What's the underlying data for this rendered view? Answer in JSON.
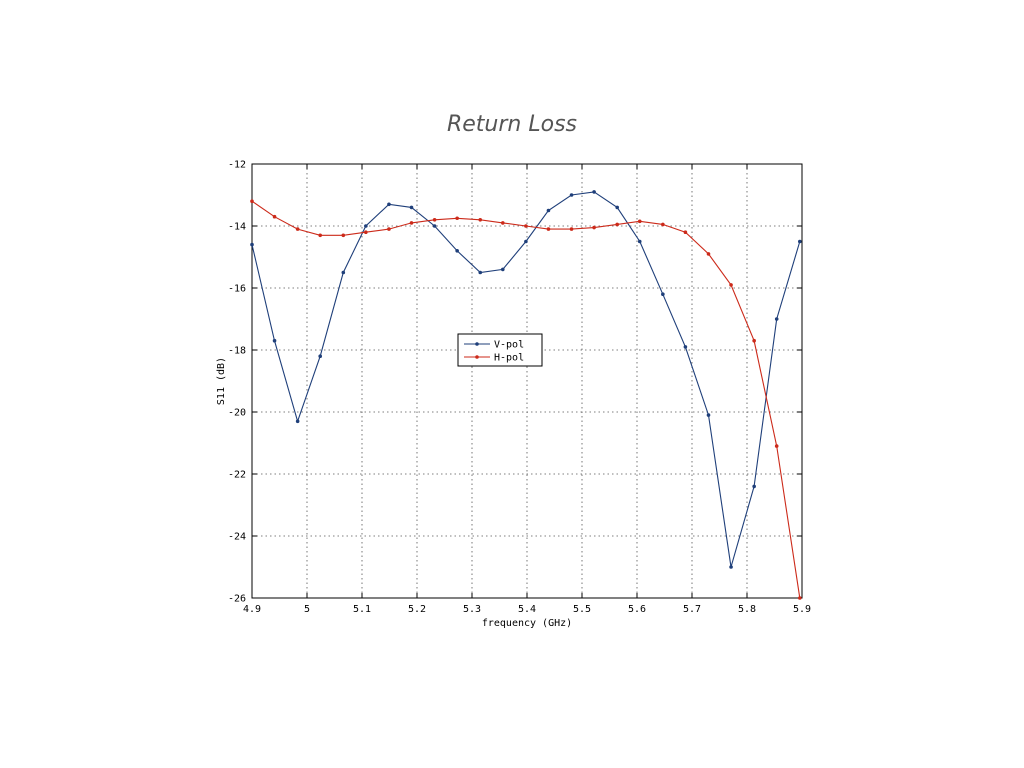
{
  "chart_data": {
    "type": "line",
    "title": "Return Loss",
    "xlabel": "frequency (GHz)",
    "ylabel": "S11 (dB)",
    "xlim": [
      4.9,
      5.9
    ],
    "ylim": [
      -26,
      -12
    ],
    "xticks": [
      4.9,
      5.0,
      5.1,
      5.2,
      5.3,
      5.4,
      5.5,
      5.6,
      5.7,
      5.8,
      5.9
    ],
    "xtick_labels": [
      "4.9",
      "5",
      "5.1",
      "5.2",
      "5.3",
      "5.4",
      "5.5",
      "5.6",
      "5.7",
      "5.8",
      "5.9"
    ],
    "yticks": [
      -26,
      -24,
      -22,
      -20,
      -18,
      -16,
      -14,
      -12
    ],
    "ytick_labels": [
      "-26",
      "-24",
      "-22",
      "-20",
      "-18",
      "-16",
      "-14",
      "-12"
    ],
    "grid": true,
    "legend_position": "center-left",
    "series": [
      {
        "name": "V-pol",
        "color": "#1f3f7a",
        "x": [
          4.9,
          4.941,
          4.983,
          5.024,
          5.066,
          5.107,
          5.149,
          5.19,
          5.232,
          5.273,
          5.315,
          5.356,
          5.398,
          5.439,
          5.481,
          5.522,
          5.564,
          5.605,
          5.647,
          5.688,
          5.73,
          5.771,
          5.813,
          5.854,
          5.896
        ],
        "y": [
          -14.6,
          -17.7,
          -20.3,
          -18.2,
          -15.5,
          -14.0,
          -13.3,
          -13.4,
          -14.0,
          -14.8,
          -15.5,
          -15.4,
          -14.5,
          -13.5,
          -13.0,
          -12.9,
          -13.4,
          -14.5,
          -16.2,
          -17.9,
          -20.1,
          -25.0,
          -22.4,
          -17.0,
          -14.5
        ]
      },
      {
        "name": "H-pol",
        "color": "#cc2a1a",
        "x": [
          4.9,
          4.941,
          4.983,
          5.024,
          5.066,
          5.107,
          5.149,
          5.19,
          5.232,
          5.273,
          5.315,
          5.356,
          5.398,
          5.439,
          5.481,
          5.522,
          5.564,
          5.605,
          5.647,
          5.688,
          5.73,
          5.771,
          5.813,
          5.854,
          5.896
        ],
        "y": [
          -13.2,
          -13.7,
          -14.1,
          -14.3,
          -14.3,
          -14.2,
          -14.1,
          -13.9,
          -13.8,
          -13.75,
          -13.8,
          -13.9,
          -14.0,
          -14.1,
          -14.1,
          -14.05,
          -13.95,
          -13.85,
          -13.95,
          -14.2,
          -14.9,
          -15.9,
          -17.7,
          -21.1,
          -26.0
        ]
      }
    ]
  }
}
